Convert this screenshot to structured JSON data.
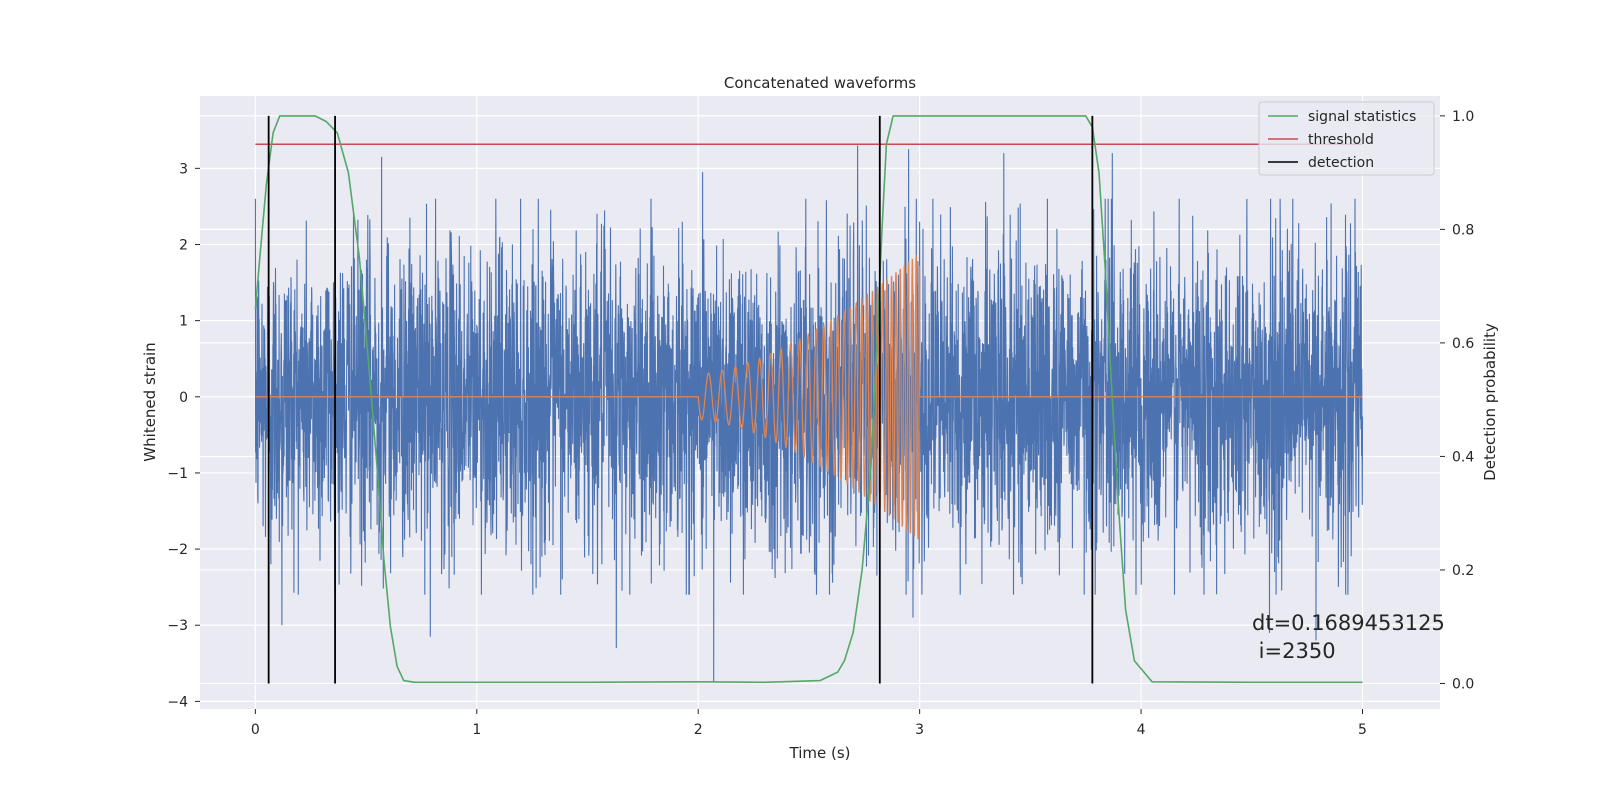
{
  "chart_data": {
    "type": "line",
    "title": "Concatenated waveforms",
    "xlabel": "Time (s)",
    "ylabel": "Whitened strain",
    "ylabel_right": "Detection probability",
    "xlim": [
      -0.25,
      5.35
    ],
    "ylim": [
      -4.1,
      3.95
    ],
    "ylim_right": [
      -0.045,
      1.035
    ],
    "xticks": [
      0,
      1,
      2,
      3,
      4,
      5
    ],
    "yticks": [
      -4,
      -3,
      -2,
      -1,
      0,
      1,
      2,
      3
    ],
    "yticks_right": [
      0.0,
      0.2,
      0.4,
      0.6,
      0.8,
      1.0
    ],
    "grid": true,
    "legend_position": "upper-right",
    "series": [
      {
        "name": "",
        "axis": "left",
        "color": "#4c72b0",
        "description_of_values": "whitened noise, std approx 1.0, sampled 0 to 5 s",
        "x_range": [
          0,
          5
        ],
        "std": 1.0,
        "extreme_values": [
          {
            "x": 0.07,
            "y": -2.2
          },
          {
            "x": 0.12,
            "y": -3.0
          },
          {
            "x": 0.57,
            "y": 3.15
          },
          {
            "x": 0.79,
            "y": -3.15
          },
          {
            "x": 1.63,
            "y": -3.3
          },
          {
            "x": 2.02,
            "y": 2.95
          },
          {
            "x": 2.07,
            "y": -3.75
          },
          {
            "x": 2.72,
            "y": 3.3
          },
          {
            "x": 2.95,
            "y": 3.25
          },
          {
            "x": 2.97,
            "y": -2.9
          },
          {
            "x": 3.38,
            "y": 3.2
          },
          {
            "x": 3.87,
            "y": 3.2
          },
          {
            "x": 4.58,
            "y": -3.1
          },
          {
            "x": 4.79,
            "y": -3.2
          }
        ]
      },
      {
        "name": "",
        "axis": "left",
        "color": "#dd8452",
        "description_of_values": "injected chirp between 2.0 s and 3.0 s, amplitude rising from 0.3 to 1.9",
        "chirp": {
          "t_start": 2.0,
          "t_end": 3.0,
          "amp_start": 0.3,
          "amp_end": 1.9,
          "f_start": 16,
          "f_end": 60
        }
      },
      {
        "name": "signal statistics",
        "axis": "right",
        "color": "#55a868",
        "x": [
          0.0,
          0.02,
          0.05,
          0.08,
          0.11,
          0.14,
          0.18,
          0.22,
          0.27,
          0.32,
          0.37,
          0.42,
          0.47,
          0.51,
          0.55,
          0.58,
          0.61,
          0.64,
          0.67,
          0.72,
          1.0,
          1.5,
          2.0,
          2.3,
          2.55,
          2.63,
          2.66,
          2.7,
          2.74,
          2.78,
          2.81,
          2.83,
          2.85,
          2.88,
          3.0,
          3.5,
          3.75,
          3.78,
          3.81,
          3.84,
          3.87,
          3.9,
          3.93,
          3.97,
          4.05,
          4.5,
          5.0
        ],
        "values": [
          0.66,
          0.75,
          0.88,
          0.97,
          1.0,
          1.0,
          1.0,
          1.0,
          1.0,
          0.99,
          0.97,
          0.9,
          0.75,
          0.57,
          0.38,
          0.22,
          0.1,
          0.03,
          0.005,
          0.002,
          0.002,
          0.002,
          0.003,
          0.002,
          0.005,
          0.02,
          0.04,
          0.09,
          0.2,
          0.38,
          0.62,
          0.8,
          0.95,
          1.0,
          1.0,
          1.0,
          1.0,
          0.98,
          0.9,
          0.72,
          0.5,
          0.3,
          0.13,
          0.04,
          0.003,
          0.002,
          0.002
        ]
      },
      {
        "name": "threshold",
        "axis": "right",
        "color": "#c44e52",
        "x": [
          0,
          5
        ],
        "values": [
          0.95,
          0.95
        ]
      },
      {
        "name": "detection",
        "axis": "right",
        "color": "#000000",
        "type": "vlines",
        "x": [
          0.06,
          0.36,
          2.82,
          3.78
        ],
        "ymin": 0.0,
        "ymax": 1.0
      }
    ],
    "annotations": [
      "dt=0.1689453125",
      " i=2350"
    ]
  }
}
